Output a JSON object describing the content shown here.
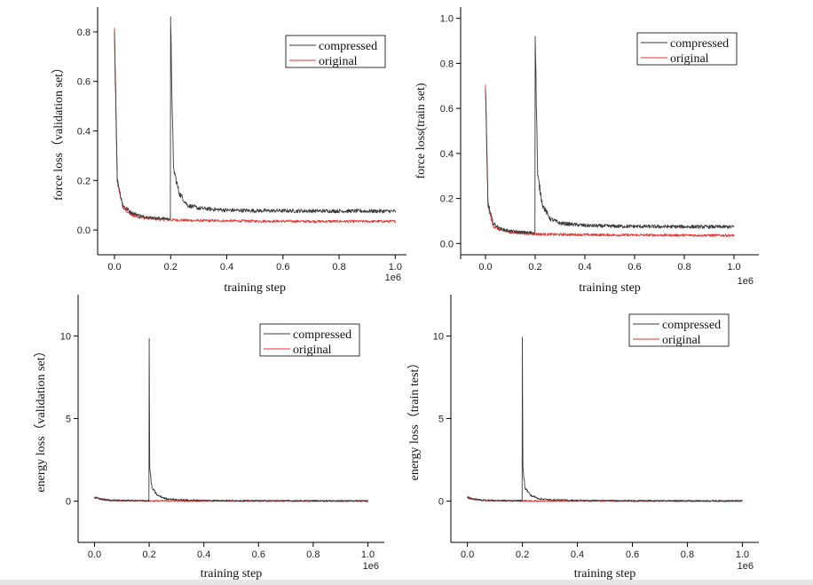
{
  "colors": {
    "compressed": "#3a3a3a",
    "original": "#e8312f"
  },
  "chart_data": [
    {
      "type": "line",
      "xlabel": "training step",
      "ylabel": "force loss（validation set）",
      "x_multiplier": "1e6",
      "xlim": [
        -0.06,
        1.04
      ],
      "ylim": [
        -0.1,
        0.9
      ],
      "x_ticks": [
        0.0,
        0.2,
        0.4,
        0.6,
        0.8,
        1.0
      ],
      "x_tick_labels": [
        "0.0",
        "0.2",
        "0.4",
        "0.6",
        "0.8",
        "1.0"
      ],
      "y_ticks": [
        0.0,
        0.2,
        0.4,
        0.6,
        0.8
      ],
      "y_tick_labels": [
        "0.0",
        "0.2",
        "0.4",
        "0.6",
        "0.8"
      ],
      "legend": [
        "compressed",
        "original"
      ],
      "legend_position": "top-right",
      "series": [
        {
          "name": "compressed",
          "color": "#3a3a3a",
          "x": [
            0.0,
            0.01,
            0.03,
            0.06,
            0.1,
            0.15,
            0.199,
            0.2,
            0.21,
            0.23,
            0.26,
            0.3,
            0.4,
            0.5,
            0.7,
            1.0
          ],
          "y": [
            0.8,
            0.2,
            0.1,
            0.07,
            0.055,
            0.048,
            0.045,
            0.83,
            0.25,
            0.15,
            0.1,
            0.088,
            0.08,
            0.078,
            0.077,
            0.076
          ]
        },
        {
          "name": "original",
          "color": "#e8312f",
          "x": [
            0.0,
            0.01,
            0.03,
            0.06,
            0.1,
            0.15,
            0.2,
            0.3,
            0.5,
            0.7,
            1.0
          ],
          "y": [
            0.8,
            0.2,
            0.09,
            0.06,
            0.05,
            0.044,
            0.041,
            0.038,
            0.036,
            0.035,
            0.035
          ]
        }
      ]
    },
    {
      "type": "line",
      "xlabel": "training step",
      "ylabel": "force loss(train set)",
      "x_multiplier": "1e6",
      "xlim": [
        -0.1,
        1.1
      ],
      "ylim": [
        -0.05,
        1.05
      ],
      "x_ticks": [
        -0.1,
        0.0,
        0.2,
        0.4,
        0.6,
        0.8,
        1.0
      ],
      "x_tick_labels": [
        "",
        "0.0",
        "0.2",
        "0.4",
        "0.6",
        "0.8",
        "1.0"
      ],
      "y_ticks": [
        0.0,
        0.2,
        0.4,
        0.6,
        0.8,
        1.0
      ],
      "y_tick_labels": [
        "0.0",
        "0.2",
        "0.4",
        "0.6",
        "0.8",
        "1.0"
      ],
      "legend": [
        "compressed",
        "original"
      ],
      "legend_position": "top-right",
      "series": [
        {
          "name": "compressed",
          "color": "#3a3a3a",
          "x": [
            0.0,
            0.01,
            0.03,
            0.06,
            0.1,
            0.15,
            0.199,
            0.2,
            0.21,
            0.23,
            0.26,
            0.3,
            0.4,
            0.5,
            0.7,
            1.0
          ],
          "y": [
            0.68,
            0.18,
            0.09,
            0.065,
            0.055,
            0.05,
            0.048,
            0.92,
            0.3,
            0.17,
            0.11,
            0.09,
            0.08,
            0.077,
            0.075,
            0.074
          ]
        },
        {
          "name": "original",
          "color": "#e8312f",
          "x": [
            0.0,
            0.01,
            0.03,
            0.06,
            0.1,
            0.15,
            0.2,
            0.3,
            0.5,
            0.7,
            1.0
          ],
          "y": [
            0.68,
            0.17,
            0.08,
            0.06,
            0.05,
            0.045,
            0.042,
            0.04,
            0.038,
            0.037,
            0.036
          ]
        }
      ]
    },
    {
      "type": "line",
      "xlabel": "training step",
      "ylabel": "energy loss（validation set）",
      "x_multiplier": "1e6",
      "xlim": [
        -0.06,
        1.06
      ],
      "ylim": [
        -2.5,
        12.5
      ],
      "x_ticks": [
        0.0,
        0.2,
        0.4,
        0.6,
        0.8,
        1.0
      ],
      "x_tick_labels": [
        "0.0",
        "0.2",
        "0.4",
        "0.6",
        "0.8",
        "1.0"
      ],
      "y_ticks": [
        0,
        5,
        10
      ],
      "y_tick_labels": [
        "0",
        "5",
        "10"
      ],
      "legend": [
        "compressed",
        "original"
      ],
      "legend_position": "top-right",
      "series": [
        {
          "name": "compressed",
          "color": "#3a3a3a",
          "x": [
            0.0,
            0.05,
            0.1,
            0.15,
            0.199,
            0.2,
            0.202,
            0.21,
            0.23,
            0.26,
            0.3,
            0.4,
            0.6,
            1.0
          ],
          "y": [
            0.2,
            0.06,
            0.04,
            0.03,
            0.02,
            9.4,
            2.0,
            0.8,
            0.35,
            0.15,
            0.08,
            0.04,
            0.02,
            0.01
          ]
        },
        {
          "name": "original",
          "color": "#e8312f",
          "x": [
            0.0,
            0.02,
            0.05,
            0.1,
            0.2,
            0.4,
            0.6,
            1.0
          ],
          "y": [
            0.25,
            0.12,
            0.06,
            0.03,
            0.015,
            0.01,
            0.008,
            0.006
          ]
        }
      ]
    },
    {
      "type": "line",
      "xlabel": "training step",
      "ylabel": "energy loss（train test）",
      "x_multiplier": "1e6",
      "xlim": [
        -0.06,
        1.06
      ],
      "ylim": [
        -2.5,
        12.5
      ],
      "x_ticks": [
        0.0,
        0.2,
        0.4,
        0.6,
        0.8,
        1.0
      ],
      "x_tick_labels": [
        "0.0",
        "0.2",
        "0.4",
        "0.6",
        "0.8",
        "1.0"
      ],
      "y_ticks": [
        0,
        5,
        10
      ],
      "y_tick_labels": [
        "0",
        "5",
        "10"
      ],
      "legend": [
        "compressed",
        "original"
      ],
      "legend_position": "top-right",
      "series": [
        {
          "name": "compressed",
          "color": "#3a3a3a",
          "x": [
            0.0,
            0.05,
            0.1,
            0.15,
            0.199,
            0.2,
            0.202,
            0.21,
            0.23,
            0.26,
            0.3,
            0.4,
            0.6,
            1.0
          ],
          "y": [
            0.2,
            0.06,
            0.04,
            0.03,
            0.02,
            9.4,
            2.0,
            0.8,
            0.35,
            0.15,
            0.08,
            0.04,
            0.02,
            0.01
          ]
        },
        {
          "name": "original",
          "color": "#e8312f",
          "x": [
            0.0,
            0.02,
            0.05,
            0.1,
            0.2,
            0.4,
            0.6,
            1.0
          ],
          "y": [
            0.25,
            0.12,
            0.06,
            0.03,
            0.015,
            0.01,
            0.008,
            0.006
          ]
        }
      ]
    }
  ]
}
